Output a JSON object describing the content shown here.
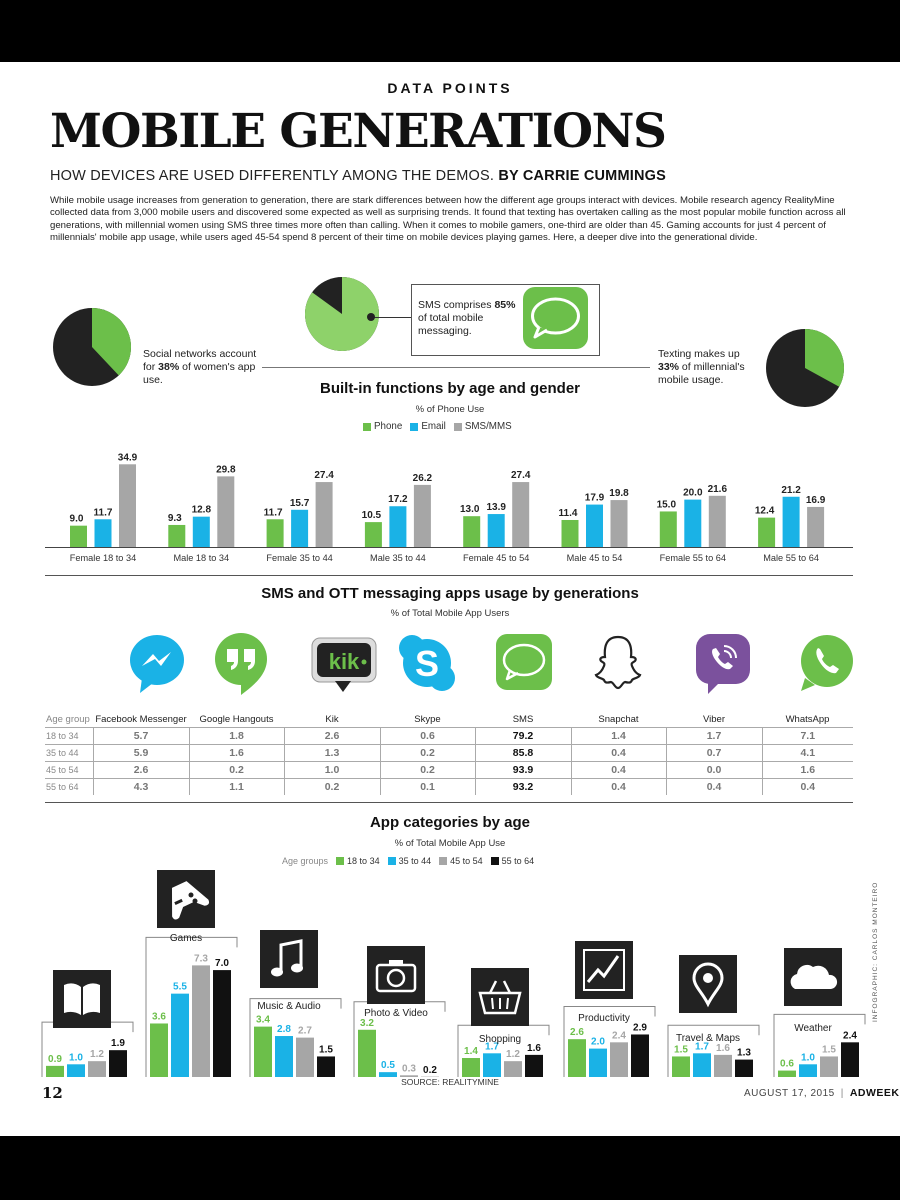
{
  "header": {
    "kicker": "DATA POINTS",
    "title": "MOBILE GENERATIONS",
    "deck": "HOW DEVICES ARE USED DIFFERENTLY AMONG THE DEMOS.",
    "byline": "BY CARRIE CUMMINGS",
    "intro": "While mobile usage increases from generation to generation, there are stark differences between how the different age groups interact with devices. Mobile research agency RealityMine collected data from 3,000 mobile users and discovered some expected as well as surprising trends. It found that texting has overtaken calling as the most popular mobile function across all generations, with millennial women using SMS three times more often than calling. When it comes to mobile gamers, one-third are older than 45. Gaming accounts for just 4 percent of millennials' mobile app usage, while users aged 45-54 spend 8 percent of their time on mobile devices playing games. Here, a deeper dive into the generational divide."
  },
  "callouts": {
    "social": {
      "pre": "Social networks account for ",
      "value": "38%",
      "post": " of women's app use.",
      "percent": 38
    },
    "sms": {
      "pre": "SMS comprises ",
      "value": "85%",
      "post": " of total mobile messaging.",
      "percent": 85
    },
    "texting": {
      "pre": "Texting makes up ",
      "value": "33%",
      "post": " of millennial's mobile usage.",
      "percent": 33
    }
  },
  "colors": {
    "green": "#6cbf4a",
    "blue": "#1ab2e6",
    "gray": "#a6a6a6",
    "black": "#111111",
    "dark": "#222222"
  },
  "chart_data": [
    {
      "type": "bar",
      "title": "Built-in functions by age and gender",
      "subtitle": "% of Phone Use",
      "categories": [
        "Female 18 to 34",
        "Male 18 to 34",
        "Female 35 to 44",
        "Male 35 to 44",
        "Female 45 to 54",
        "Male 45 to 54",
        "Female 55 to 64",
        "Male 55 to 64"
      ],
      "series": [
        {
          "name": "Phone",
          "values": [
            9.0,
            9.3,
            11.7,
            10.5,
            13.0,
            11.4,
            15.0,
            12.4
          ]
        },
        {
          "name": "Email",
          "values": [
            11.7,
            12.8,
            15.7,
            17.2,
            13.9,
            17.9,
            20.0,
            21.2
          ]
        },
        {
          "name": "SMS/MMS",
          "values": [
            34.9,
            29.8,
            27.4,
            26.2,
            27.4,
            19.8,
            21.6,
            16.9
          ]
        }
      ],
      "ylim": [
        0,
        37
      ]
    },
    {
      "type": "table",
      "title": "SMS and OTT messaging apps usage by generations",
      "subtitle": "% of Total Mobile App Users",
      "row_header": "Age group",
      "columns": [
        "Facebook Messenger",
        "Google Hangouts",
        "Kik",
        "Skype",
        "SMS",
        "Snapchat",
        "Viber",
        "WhatsApp"
      ],
      "rows": [
        {
          "label": "18 to 34",
          "values": [
            "5.7",
            "1.8",
            "2.6",
            "0.6",
            "79.2",
            "1.4",
            "1.7",
            "7.1"
          ]
        },
        {
          "label": "35 to 44",
          "values": [
            "5.9",
            "1.6",
            "1.3",
            "0.2",
            "85.8",
            "0.4",
            "0.7",
            "4.1"
          ]
        },
        {
          "label": "45 to 54",
          "values": [
            "2.6",
            "0.2",
            "1.0",
            "0.2",
            "93.9",
            "0.4",
            "0.0",
            "1.6"
          ]
        },
        {
          "label": "55 to 64",
          "values": [
            "4.3",
            "1.1",
            "0.2",
            "0.1",
            "93.2",
            "0.4",
            "0.4",
            "0.4"
          ]
        }
      ]
    },
    {
      "type": "bar",
      "title": "App categories by age",
      "subtitle": "% of Total Mobile App Use",
      "legend_title": "Age groups",
      "series_names": [
        "18 to 34",
        "35 to 44",
        "45 to 54",
        "55 to 64"
      ],
      "categories": [
        {
          "name": "Books & Reference",
          "values": [
            0.9,
            1.0,
            1.2,
            1.9
          ],
          "icon": "book-icon"
        },
        {
          "name": "Games",
          "values": [
            3.6,
            5.5,
            7.3,
            7.0
          ],
          "icon": "gamepad-icon"
        },
        {
          "name": "Music & Audio",
          "values": [
            3.4,
            2.8,
            2.7,
            1.5
          ],
          "icon": "music-note-icon"
        },
        {
          "name": "Photo & Video",
          "values": [
            3.2,
            0.5,
            0.3,
            0.2
          ],
          "icon": "camera-icon"
        },
        {
          "name": "Shopping",
          "values": [
            1.4,
            1.7,
            1.2,
            1.6
          ],
          "icon": "shopping-basket-icon"
        },
        {
          "name": "Productivity",
          "values": [
            2.6,
            2.0,
            2.4,
            2.9
          ],
          "icon": "line-chart-icon"
        },
        {
          "name": "Travel & Maps",
          "values": [
            1.5,
            1.7,
            1.6,
            1.3
          ],
          "icon": "map-pin-icon"
        },
        {
          "name": "Weather",
          "values": [
            0.6,
            1.0,
            1.5,
            2.4
          ],
          "icon": "cloud-icon"
        }
      ]
    }
  ],
  "footer": {
    "page_number": "12",
    "source": "SOURCE: REALITYMINE",
    "date": "AUGUST 17, 2015",
    "publication": "ADWEEK",
    "credit": "INFOGRAPHIC: CARLOS MONTEIRO"
  }
}
